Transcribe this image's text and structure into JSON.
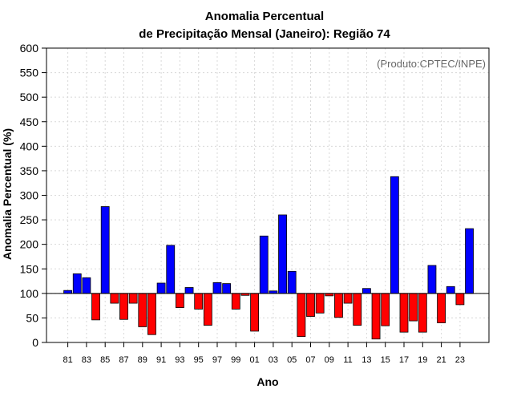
{
  "chart_data": {
    "type": "bar",
    "title_line1": "Anomalia Percentual",
    "title_line2": "de Precipitação Mensal (Janeiro): Região 74",
    "xlabel": "Ano",
    "ylabel": "Anomalia Percentual (%)",
    "annotation": "(Produto:CPTEC/INPE)",
    "ylim": [
      0,
      600
    ],
    "yticks": [
      0,
      50,
      100,
      150,
      200,
      250,
      300,
      350,
      400,
      450,
      500,
      550,
      600
    ],
    "baseline": 100,
    "grid": true,
    "colors": {
      "above": "#0000ff",
      "below": "#ff0000",
      "outline": "#000000"
    },
    "categories": [
      "81",
      "82",
      "83",
      "84",
      "85",
      "86",
      "87",
      "88",
      "89",
      "90",
      "91",
      "92",
      "93",
      "94",
      "95",
      "96",
      "97",
      "98",
      "99",
      "00",
      "01",
      "02",
      "03",
      "04",
      "05",
      "06",
      "07",
      "08",
      "09",
      "10",
      "11",
      "12",
      "13",
      "14",
      "15",
      "16",
      "17",
      "18",
      "19",
      "20",
      "21",
      "22",
      "23",
      "24"
    ],
    "xtick_labels": [
      "81",
      "83",
      "85",
      "87",
      "89",
      "91",
      "93",
      "95",
      "97",
      "99",
      "01",
      "03",
      "05",
      "07",
      "09",
      "11",
      "13",
      "15",
      "17",
      "19",
      "21",
      "23"
    ],
    "values": [
      106,
      140,
      132,
      46,
      277,
      80,
      47,
      80,
      32,
      16,
      121,
      198,
      71,
      112,
      68,
      35,
      122,
      120,
      68,
      96,
      23,
      217,
      105,
      260,
      145,
      12,
      53,
      60,
      95,
      51,
      80,
      35,
      110,
      7,
      34,
      338,
      21,
      44,
      21,
      157,
      40,
      114,
      77,
      232
    ]
  }
}
